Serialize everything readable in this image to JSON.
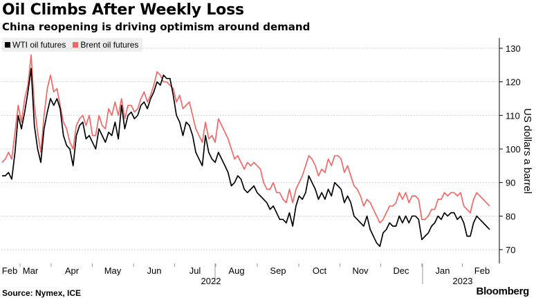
{
  "title": "Oil Climbs After Weekly Loss",
  "subtitle": "China reopening is driving optimism around demand",
  "source": "Source: Nymex, ICE",
  "brand": "Bloomberg",
  "chart_data": {
    "type": "line",
    "ylabel": "US dollars a barrel",
    "ylim": [
      65,
      135
    ],
    "yticks": [
      70,
      80,
      90,
      100,
      110,
      120,
      130
    ],
    "months": [
      "Feb",
      "Mar",
      "Apr",
      "May",
      "Jun",
      "Jul",
      "Aug",
      "Sep",
      "Oct",
      "Nov",
      "Dec",
      "Jan",
      "Feb"
    ],
    "year_labels": [
      "2022",
      "2023"
    ],
    "grid": true,
    "legend_position": "top-left",
    "series": [
      {
        "name": "WTI oil futures",
        "color": "#000000",
        "values": [
          92,
          92,
          93,
          91,
          99,
          110,
          106,
          111,
          117,
          124,
          107,
          100,
          96,
          106,
          111,
          115,
          113,
          115,
          112,
          104,
          101,
          100,
          95,
          104,
          107,
          108,
          103,
          104,
          102,
          100,
          106,
          104,
          102,
          105,
          104,
          108,
          103,
          113,
          106,
          110,
          111,
          109,
          110,
          113,
          114,
          112,
          115,
          117,
          120,
          119,
          122,
          121,
          121,
          116,
          110,
          108,
          104,
          108,
          107,
          104,
          99,
          97,
          95,
          104,
          99,
          97,
          96,
          99,
          97,
          95,
          93,
          89,
          90,
          92,
          91,
          88,
          87,
          88,
          89,
          87,
          86,
          85,
          84,
          82,
          83,
          81,
          79,
          79,
          78,
          81,
          77,
          83,
          86,
          85,
          87,
          92,
          90,
          88,
          85,
          87,
          85,
          88,
          86,
          90,
          89,
          88,
          84,
          86,
          84,
          80,
          79,
          78,
          77,
          80,
          76,
          74,
          72,
          71,
          75,
          76,
          78,
          77,
          77,
          80,
          78,
          80,
          78,
          80,
          80,
          79,
          73,
          74,
          75,
          77,
          78,
          80,
          79,
          81,
          80,
          81,
          81,
          79,
          80,
          78,
          74,
          74,
          78,
          80,
          79,
          78,
          77,
          76
        ]
      },
      {
        "name": "Brent oil futures",
        "color": "#f26766",
        "values": [
          96,
          97,
          99,
          97,
          105,
          113,
          108,
          115,
          119,
          128,
          113,
          105,
          99,
          110,
          118,
          122,
          117,
          118,
          113,
          108,
          106,
          102,
          100,
          107,
          109,
          110,
          107,
          110,
          104,
          104,
          110,
          107,
          106,
          112,
          110,
          114,
          110,
          115,
          109,
          113,
          113,
          111,
          112,
          115,
          117,
          114,
          116,
          119,
          123,
          122,
          120,
          120,
          119,
          118,
          114,
          116,
          112,
          113,
          114,
          110,
          106,
          104,
          102,
          108,
          103,
          104,
          102,
          109,
          107,
          105,
          103,
          100,
          97,
          98,
          96,
          94,
          96,
          95,
          96,
          95,
          94,
          90,
          88,
          88,
          90,
          87,
          87,
          85,
          84,
          88,
          84,
          88,
          90,
          92,
          95,
          98,
          97,
          95,
          92,
          94,
          93,
          97,
          95,
          98,
          98,
          97,
          93,
          95,
          92,
          89,
          88,
          86,
          83,
          85,
          84,
          82,
          80,
          78,
          79,
          81,
          83,
          83,
          84,
          87,
          85,
          87,
          84,
          86,
          86,
          85,
          79,
          79,
          80,
          82,
          82,
          85,
          85,
          87,
          86,
          87,
          87,
          86,
          87,
          83,
          82,
          81,
          85,
          87,
          86,
          85,
          84,
          83
        ]
      }
    ]
  }
}
